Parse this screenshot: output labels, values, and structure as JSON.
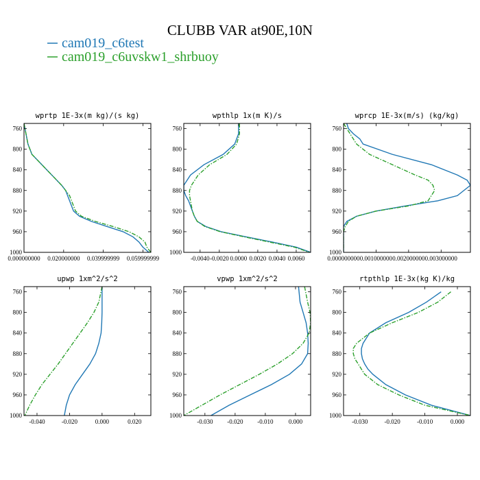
{
  "figure": {
    "title": "CLUBB VAR at90E,10N",
    "legend": [
      {
        "label": "cam019_c6test",
        "color": "#1f77b4",
        "dash": "solid"
      },
      {
        "label": "cam019_c6uvskw1_shrbuoy",
        "color": "#2ca02c",
        "dash": "dashdot"
      }
    ]
  },
  "chart_data": [
    {
      "type": "line",
      "title": "wprtp  1E-3x(m kg)/(s kg)",
      "xlim": [
        0,
        0.064
      ],
      "ylim": [
        750,
        1000
      ],
      "xticks": [
        0,
        0.02,
        0.04,
        0.06
      ],
      "xtick_labels": [
        "0.000000000",
        "0.020000000",
        "0.039999999",
        "0.059999999"
      ],
      "yticks": [
        760,
        800,
        840,
        880,
        920,
        960,
        1000
      ],
      "y": [
        750,
        770,
        790,
        810,
        830,
        850,
        870,
        880,
        890,
        900,
        910,
        920,
        930,
        940,
        950,
        960,
        970,
        980,
        990,
        1000
      ],
      "series": [
        {
          "name": "cam019_c6test",
          "values": [
            0.0,
            0.001,
            0.002,
            0.004,
            0.009,
            0.014,
            0.019,
            0.021,
            0.022,
            0.023,
            0.024,
            0.025,
            0.028,
            0.034,
            0.042,
            0.05,
            0.055,
            0.058,
            0.06,
            0.063
          ]
        },
        {
          "name": "cam019_c6uvskw1_shrbuoy",
          "values": [
            0.0,
            0.001,
            0.002,
            0.004,
            0.009,
            0.014,
            0.019,
            0.021,
            0.023,
            0.024,
            0.025,
            0.026,
            0.029,
            0.036,
            0.045,
            0.053,
            0.058,
            0.061,
            0.062,
            0.064
          ]
        }
      ]
    },
    {
      "type": "line",
      "title": "wpthlp  1x(m K)/s",
      "xlim": [
        -0.0057,
        0.0075
      ],
      "ylim": [
        750,
        1000
      ],
      "xticks": [
        -0.004,
        -0.002,
        0.0,
        0.002,
        0.004,
        0.006
      ],
      "xtick_labels": [
        "-0.0040",
        "-0.0020",
        "0.0000",
        "0.0020",
        "0.0040",
        "0.0060"
      ],
      "yticks": [
        760,
        800,
        840,
        880,
        920,
        960,
        1000
      ],
      "y": [
        750,
        770,
        790,
        810,
        830,
        850,
        870,
        880,
        890,
        900,
        910,
        920,
        930,
        940,
        950,
        960,
        970,
        980,
        990,
        1000
      ],
      "series": [
        {
          "name": "cam019_c6test",
          "values": [
            0.0,
            0.0,
            -0.0004,
            -0.0016,
            -0.0036,
            -0.005,
            -0.0057,
            -0.0057,
            -0.0055,
            -0.0052,
            -0.005,
            -0.0048,
            -0.0046,
            -0.0043,
            -0.0034,
            -0.0018,
            0.0008,
            0.0035,
            0.006,
            0.0075
          ]
        },
        {
          "name": "cam019_c6uvskw1_shrbuoy",
          "values": [
            0.0001,
            0.0001,
            -0.0002,
            -0.0012,
            -0.003,
            -0.0042,
            -0.0049,
            -0.0051,
            -0.0051,
            -0.005,
            -0.0049,
            -0.0048,
            -0.0046,
            -0.0043,
            -0.0035,
            -0.0019,
            0.0006,
            0.0032,
            0.0058,
            0.0074
          ]
        }
      ]
    },
    {
      "type": "line",
      "title": "wprcp  1E-3x(m/s) (kg/kg)",
      "xlim": [
        0,
        0.0039
      ],
      "ylim": [
        750,
        1000
      ],
      "xticks": [
        0,
        0.001,
        0.002,
        0.003
      ],
      "xtick_labels": [
        "0.000000000",
        "0.001000000",
        "0.002000000",
        "0.003000000"
      ],
      "yticks": [
        760,
        800,
        840,
        880,
        920,
        960,
        1000
      ],
      "y": [
        750,
        760,
        770,
        780,
        790,
        810,
        830,
        850,
        860,
        870,
        880,
        890,
        900,
        910,
        920,
        930,
        940,
        950,
        960,
        970,
        1000
      ],
      "series": [
        {
          "name": "cam019_c6test",
          "values": [
            0.0001,
            0.00015,
            0.0003,
            0.0005,
            0.0006,
            0.0015,
            0.0027,
            0.0035,
            0.0038,
            0.0039,
            0.0037,
            0.0035,
            0.0029,
            0.0019,
            0.001,
            0.0004,
            0.0001,
            0.0,
            0.0,
            0.0,
            0.0
          ]
        },
        {
          "name": "cam019_c6uvskw1_shrbuoy",
          "values": [
            0.0,
            0.0001,
            0.0002,
            0.0003,
            0.0004,
            0.0008,
            0.0015,
            0.0022,
            0.0026,
            0.00275,
            0.0028,
            0.0027,
            0.0026,
            0.002,
            0.001,
            0.0004,
            0.00015,
            5e-05,
            0.0,
            0.0,
            0.0
          ]
        }
      ]
    },
    {
      "type": "line",
      "title": "upwp  1xm^2/s^2",
      "xlim": [
        -0.048,
        0.03
      ],
      "ylim": [
        750,
        1000
      ],
      "xticks": [
        -0.04,
        -0.02,
        0.0,
        0.02
      ],
      "xtick_labels": [
        "-0.040",
        "-0.020",
        "0.000",
        "0.020"
      ],
      "yticks": [
        760,
        800,
        840,
        880,
        920,
        960,
        1000
      ],
      "y": [
        750,
        780,
        800,
        820,
        840,
        860,
        880,
        900,
        920,
        940,
        960,
        980,
        1000
      ],
      "series": [
        {
          "name": "cam019_c6test",
          "values": [
            0.0,
            0.0,
            0.0,
            -0.0002,
            -0.0006,
            -0.002,
            -0.004,
            -0.0075,
            -0.012,
            -0.0165,
            -0.02,
            -0.022,
            -0.0232
          ]
        },
        {
          "name": "cam019_c6uvskw1_shrbuoy",
          "values": [
            0.0,
            -0.002,
            -0.005,
            -0.009,
            -0.0135,
            -0.018,
            -0.0225,
            -0.027,
            -0.032,
            -0.037,
            -0.041,
            -0.0445,
            -0.0475
          ]
        }
      ]
    },
    {
      "type": "line",
      "title": "vpwp  1xm^2/s^2",
      "xlim": [
        -0.037,
        0.005
      ],
      "ylim": [
        750,
        1000
      ],
      "xticks": [
        -0.03,
        -0.02,
        -0.01,
        0.0
      ],
      "xtick_labels": [
        "-0.030",
        "-0.020",
        "-0.010",
        "0.000"
      ],
      "yticks": [
        760,
        800,
        840,
        880,
        920,
        960,
        1000
      ],
      "y": [
        750,
        780,
        800,
        820,
        840,
        860,
        880,
        900,
        920,
        940,
        960,
        980,
        1000
      ],
      "series": [
        {
          "name": "cam019_c6test",
          "values": [
            0.001,
            0.0015,
            0.0025,
            0.0035,
            0.004,
            0.0042,
            0.004,
            0.002,
            -0.002,
            -0.008,
            -0.015,
            -0.022,
            -0.028
          ]
        },
        {
          "name": "cam019_c6uvskw1_shrbuoy",
          "values": [
            0.003,
            0.004,
            0.0048,
            0.005,
            0.0045,
            0.0025,
            -0.001,
            -0.006,
            -0.012,
            -0.0185,
            -0.025,
            -0.031,
            -0.037
          ]
        }
      ]
    },
    {
      "type": "line",
      "title": "rtpthlp  1E-3x(kg K)/kg",
      "xlim": [
        -0.035,
        0.004
      ],
      "ylim": [
        750,
        1000
      ],
      "xticks": [
        -0.03,
        -0.02,
        -0.01,
        0.0
      ],
      "xtick_labels": [
        "-0.030",
        "-0.020",
        "-0.010",
        "0.000"
      ],
      "yticks": [
        760,
        800,
        840,
        880,
        920,
        960,
        1000
      ],
      "y": [
        760,
        780,
        800,
        820,
        840,
        860,
        870,
        880,
        890,
        900,
        910,
        920,
        940,
        960,
        980,
        1000
      ],
      "series": [
        {
          "name": "cam019_c6test",
          "values": [
            -0.005,
            -0.0095,
            -0.015,
            -0.022,
            -0.027,
            -0.029,
            -0.0295,
            -0.0295,
            -0.0292,
            -0.0285,
            -0.0275,
            -0.026,
            -0.022,
            -0.016,
            -0.008,
            0.004
          ]
        },
        {
          "name": "cam019_c6uvskw1_shrbuoy",
          "values": [
            -0.002,
            -0.006,
            -0.012,
            -0.02,
            -0.027,
            -0.031,
            -0.032,
            -0.032,
            -0.0315,
            -0.0305,
            -0.0295,
            -0.0285,
            -0.0245,
            -0.018,
            -0.01,
            0.004
          ]
        }
      ]
    }
  ]
}
